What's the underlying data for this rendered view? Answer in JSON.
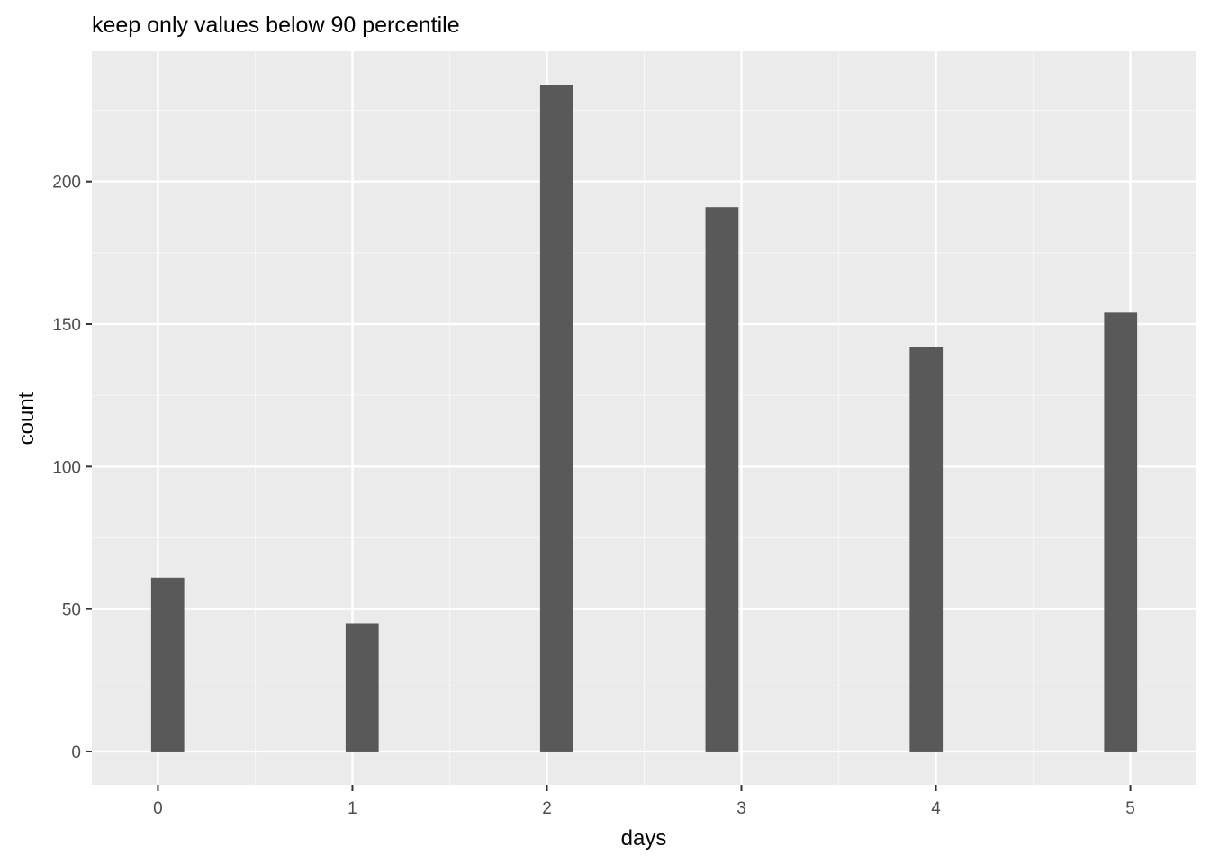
{
  "chart_data": {
    "type": "bar",
    "title": "keep only values below 90 percentile",
    "xlabel": "days",
    "ylabel": "count",
    "x": [
      0.05,
      1.05,
      2.05,
      2.9,
      3.95,
      4.95
    ],
    "values": [
      61,
      45,
      234,
      191,
      142,
      154
    ],
    "bar_width": 0.17,
    "xlim": [
      -0.34,
      5.34
    ],
    "ylim": [
      -11.7,
      245.7
    ],
    "xticks": [
      0,
      1,
      2,
      3,
      4,
      5
    ],
    "xtick_labels": [
      "0",
      "1",
      "2",
      "3",
      "4",
      "5"
    ],
    "yticks": [
      0,
      50,
      100,
      150,
      200
    ],
    "ytick_labels": [
      "0",
      "50",
      "100",
      "150",
      "200"
    ],
    "grid": true,
    "legend": "none",
    "colors": {
      "bar": "#595959",
      "panel_background": "#ebebeb",
      "grid_major": "#ffffff",
      "grid_minor": "#f5f5f5"
    }
  }
}
